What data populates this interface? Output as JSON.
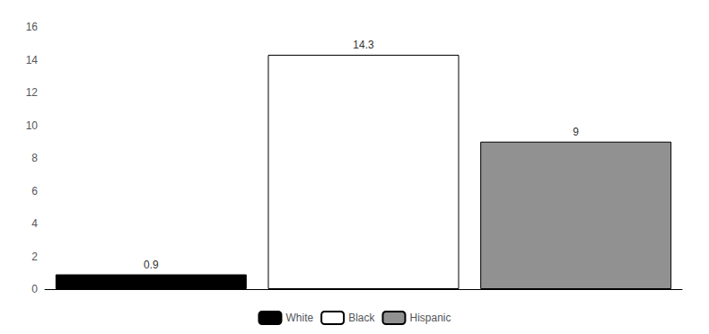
{
  "chart_data": {
    "type": "bar",
    "categories": [
      "White",
      "Black",
      "Hispanic"
    ],
    "values": [
      0.9,
      14.3,
      9.0
    ],
    "colors": [
      "#000000",
      "#ffffff",
      "#919191"
    ],
    "ylim": [
      0,
      16
    ],
    "yticks": [
      0,
      2,
      4,
      6,
      8,
      10,
      12,
      14,
      16
    ],
    "grid": false,
    "legend": "bottom",
    "data_labels": true,
    "tick_labels": "y"
  }
}
